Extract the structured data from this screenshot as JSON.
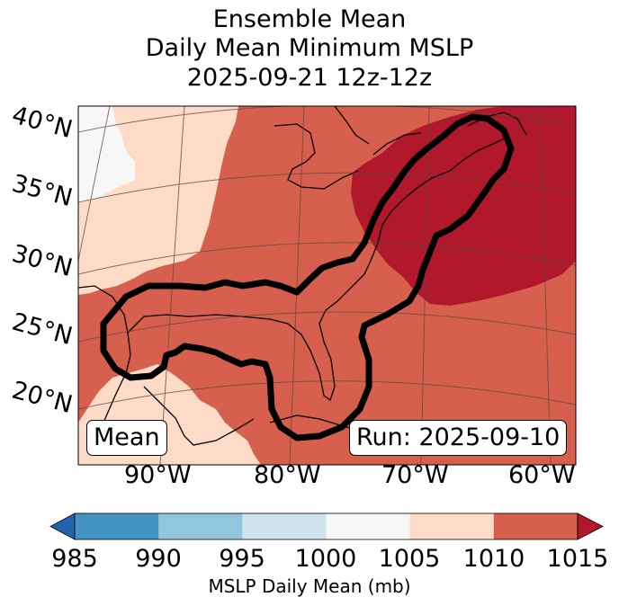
{
  "title": {
    "line1": "Ensemble Mean",
    "line2": "Daily Mean Minimum MSLP",
    "line3": "2025-09-21 12z-12z"
  },
  "map": {
    "lat_labels": [
      "40°N",
      "35°N",
      "30°N",
      "25°N",
      "20°N"
    ],
    "lon_labels": [
      "90°W",
      "80°W",
      "70°W",
      "60°W"
    ],
    "mean_label": "Mean",
    "run_label": "Run: 2025-09-10",
    "colors": {
      "c1000_1005": "#f7f7f7",
      "c1005_1010": "#fddbc7",
      "c1010_1015": "#d6604d",
      "c1015_plus": "#b2182b",
      "contour": "#000000"
    }
  },
  "colorbar": {
    "label": "MSLP Daily Mean (mb)",
    "ticks": [
      "985",
      "990",
      "995",
      "1000",
      "1005",
      "1010",
      "1015"
    ],
    "bins": [
      {
        "name": "under-985",
        "color": "#2166ac"
      },
      {
        "name": "985-990",
        "color": "#4393c3"
      },
      {
        "name": "990-995",
        "color": "#92c5de"
      },
      {
        "name": "995-1000",
        "color": "#d1e5f0"
      },
      {
        "name": "1000-1005",
        "color": "#f7f7f7"
      },
      {
        "name": "1005-1010",
        "color": "#fddbc7"
      },
      {
        "name": "1010-1015",
        "color": "#d6604d"
      },
      {
        "name": "over-1015",
        "color": "#b2182b"
      }
    ]
  }
}
